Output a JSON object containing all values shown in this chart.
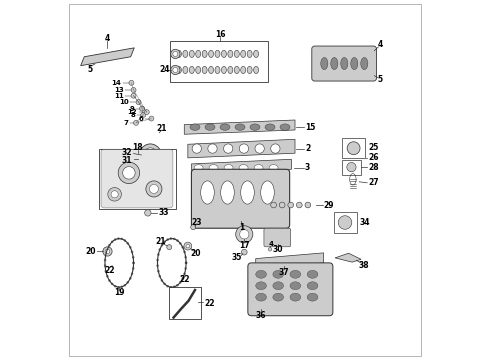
{
  "background_color": "#ffffff",
  "line_color": "#333333",
  "text_color": "#000000",
  "font_size": 5.5,
  "lgray": "#cccccc",
  "dgray": "#888888",
  "white": "#ffffff"
}
